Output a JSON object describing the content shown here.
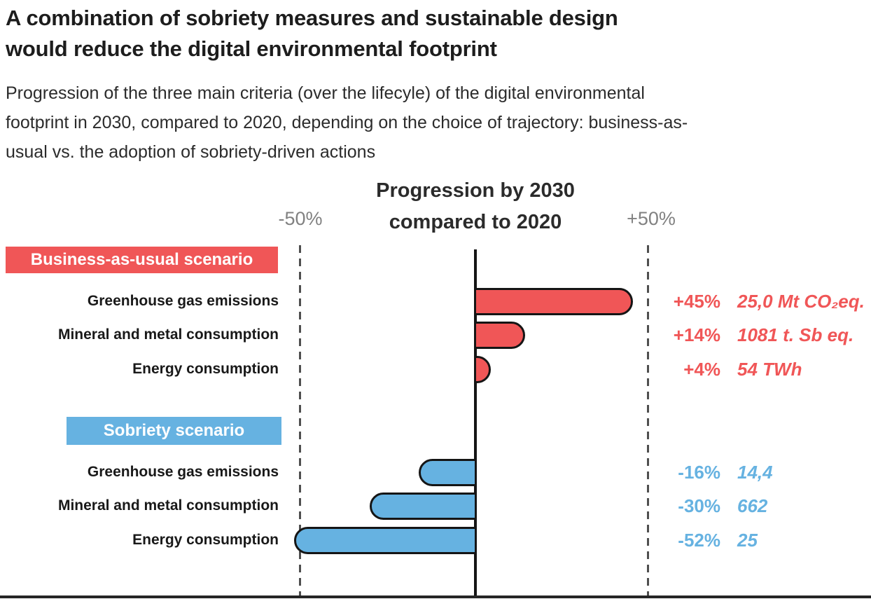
{
  "header": {
    "title_lines": [
      "A combination of sobriety measures and sustainable design",
      "would reduce the digital environmental footprint"
    ],
    "subtitle_lines": [
      "Progression of the three main criteria (over the lifecyle) of the digital environmental",
      "footprint in 2030, compared to 2020, depending on the choice of trajectory: business-as-",
      "usual vs. the adoption of sobriety-driven actions"
    ]
  },
  "chart_data": {
    "type": "bar",
    "orientation": "horizontal",
    "title": "Progression by 2030 compared to 2020",
    "title_lines": [
      "Progression by 2030",
      "compared to 2020"
    ],
    "x_axis": {
      "min": -50,
      "max": 50,
      "unit": "%",
      "tick_labels": [
        "-50%",
        "+50%"
      ],
      "zero_line": true,
      "gridlines_pct": [
        -50,
        50
      ]
    },
    "groups": [
      {
        "name": "Business-as-usual scenario",
        "color": "#f05657",
        "rows": [
          {
            "label": "Greenhouse gas emissions",
            "pct": 45,
            "pct_label": "+45%",
            "value_label": "25,0 Mt CO₂eq."
          },
          {
            "label": "Mineral and metal consumption",
            "pct": 14,
            "pct_label": "+14%",
            "value_label": "1081 t. Sb eq."
          },
          {
            "label": "Energy consumption",
            "pct": 4,
            "pct_label": "+4%",
            "value_label": "54 TWh"
          }
        ]
      },
      {
        "name": "Sobriety scenario",
        "color": "#66b2e1",
        "rows": [
          {
            "label": "Greenhouse gas emissions",
            "pct": -16,
            "pct_label": "-16%",
            "value_label": "14,4"
          },
          {
            "label": "Mineral and metal consumption",
            "pct": -30,
            "pct_label": "-30%",
            "value_label": "662"
          },
          {
            "label": "Energy consumption",
            "pct": -52,
            "pct_label": "-52%",
            "value_label": "25"
          }
        ]
      }
    ]
  }
}
